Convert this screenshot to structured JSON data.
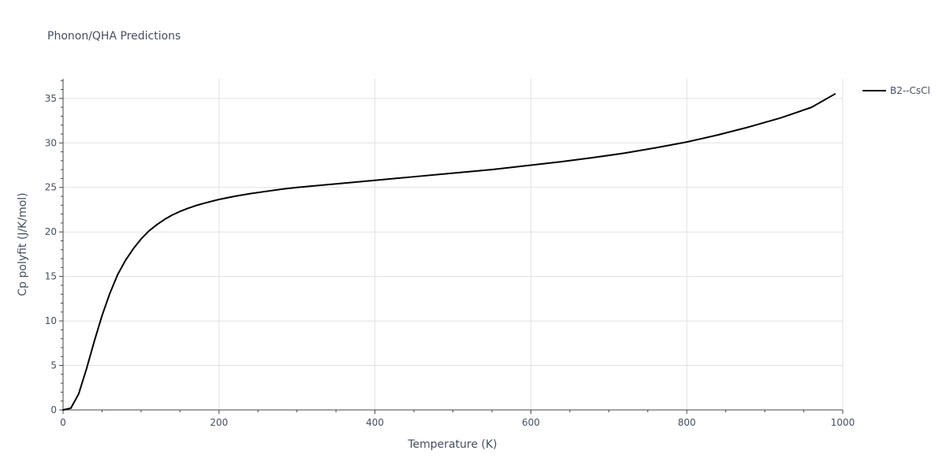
{
  "chart_data": {
    "type": "line",
    "title": "Phonon/QHA Predictions",
    "xlabel": "Temperature (K)",
    "ylabel": "Cp polyfit (J/K/mol)",
    "xlim": [
      0,
      1000
    ],
    "ylim": [
      0,
      37.2
    ],
    "xticks": [
      0,
      200,
      400,
      600,
      800,
      1000
    ],
    "yticks": [
      0,
      5,
      10,
      15,
      20,
      25,
      30,
      35
    ],
    "grid": true,
    "legend_position": "top-right",
    "series": [
      {
        "name": "B2--CsCl",
        "color": "#000000",
        "x": [
          0,
          10,
          20,
          30,
          40,
          50,
          60,
          70,
          80,
          90,
          100,
          110,
          120,
          130,
          140,
          150,
          160,
          170,
          180,
          200,
          220,
          240,
          260,
          280,
          300,
          350,
          400,
          450,
          500,
          550,
          600,
          640,
          680,
          720,
          760,
          800,
          840,
          880,
          920,
          960,
          990
        ],
        "y": [
          0,
          0.2,
          1.8,
          4.6,
          7.7,
          10.6,
          13.1,
          15.2,
          16.8,
          18.1,
          19.2,
          20.1,
          20.8,
          21.4,
          21.9,
          22.3,
          22.65,
          22.95,
          23.2,
          23.65,
          24.0,
          24.3,
          24.55,
          24.8,
          25.0,
          25.4,
          25.8,
          26.2,
          26.6,
          27.0,
          27.5,
          27.9,
          28.35,
          28.85,
          29.45,
          30.1,
          30.9,
          31.8,
          32.8,
          34.0,
          35.5
        ]
      }
    ]
  }
}
